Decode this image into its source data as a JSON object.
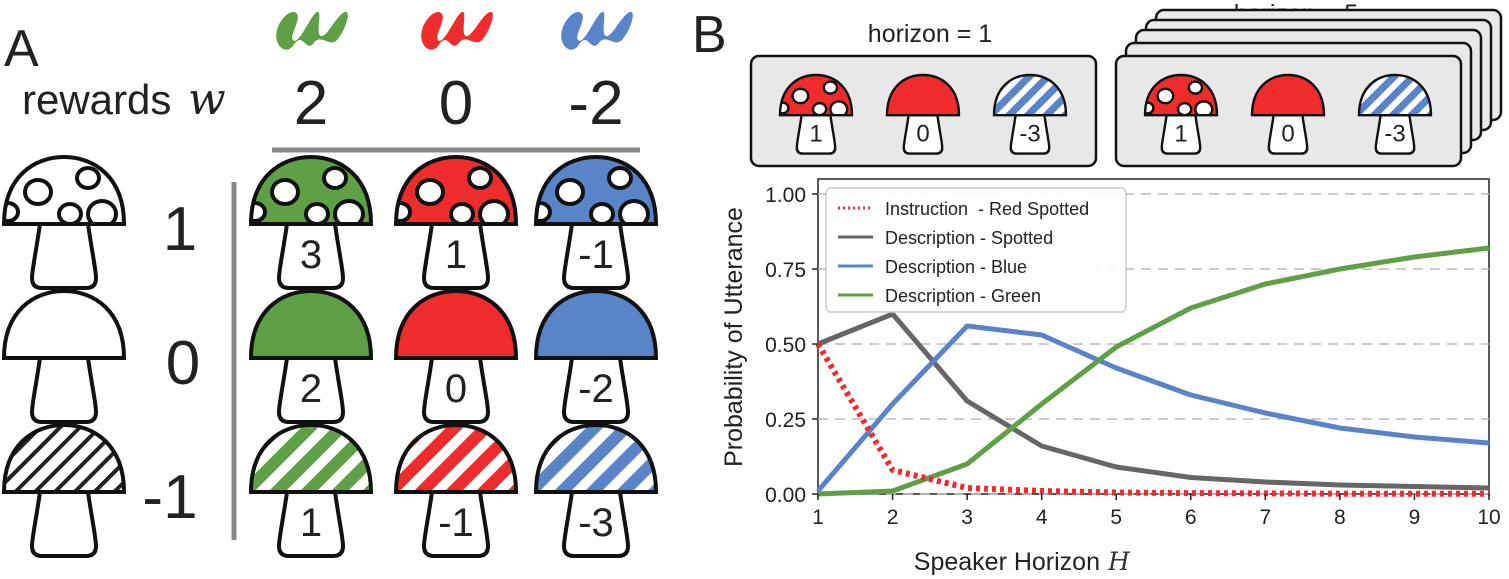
{
  "panel_a": {
    "letter": "A",
    "rewards_label": "rewards",
    "rewards_symbol": "w",
    "colors": [
      {
        "name": "green",
        "hex": "#5fa046",
        "reward": "2"
      },
      {
        "name": "red",
        "hex": "#ee2c2c",
        "reward": "0"
      },
      {
        "name": "blue",
        "hex": "#5a84c8",
        "reward": "-2"
      }
    ],
    "rows": [
      {
        "pattern": "spotted",
        "value": "1",
        "cells": [
          "3",
          "1",
          "-1"
        ]
      },
      {
        "pattern": "plain",
        "value": "0",
        "cells": [
          "2",
          "0",
          "-2"
        ]
      },
      {
        "pattern": "striped",
        "value": "-1",
        "cells": [
          "1",
          "-1",
          "-3"
        ]
      }
    ]
  },
  "panel_b": {
    "letter": "B",
    "box1": {
      "title": "horizon = 1",
      "stems": [
        "1",
        "0",
        "-3"
      ]
    },
    "box2": {
      "title": "horizon = 5",
      "stems": [
        "1",
        "0",
        "-3"
      ]
    }
  },
  "chart_data": {
    "type": "line",
    "xlabel": "Speaker Horizon",
    "xlabel_symbol": "H",
    "ylabel": "Probability of Utterance",
    "xlim": [
      1,
      10
    ],
    "ylim": [
      0,
      1.05
    ],
    "xticks": [
      "1",
      "2",
      "3",
      "4",
      "5",
      "6",
      "7",
      "8",
      "9",
      "10"
    ],
    "yticks": [
      "0.00",
      "0.25",
      "0.50",
      "0.75",
      "1.00"
    ],
    "grid": "horizontal dashed",
    "legend_position": "top-left",
    "x": [
      1,
      2,
      3,
      4,
      5,
      6,
      7,
      8,
      9,
      10
    ],
    "series": [
      {
        "name": "Instruction  - Red Spotted",
        "color": "#ee2c2c",
        "style": "dotted",
        "values": [
          0.5,
          0.08,
          0.02,
          0.01,
          0.005,
          0.003,
          0.002,
          0.001,
          0.001,
          0.001
        ]
      },
      {
        "name": "Description - Spotted",
        "color": "#666666",
        "style": "solid",
        "values": [
          0.5,
          0.6,
          0.31,
          0.16,
          0.09,
          0.055,
          0.04,
          0.03,
          0.025,
          0.02
        ]
      },
      {
        "name": "Description - Blue",
        "color": "#5a84c8",
        "style": "solid",
        "values": [
          0.01,
          0.3,
          0.56,
          0.53,
          0.42,
          0.33,
          0.27,
          0.22,
          0.19,
          0.17
        ]
      },
      {
        "name": "Description - Green",
        "color": "#5fa046",
        "style": "solid",
        "values": [
          0.0,
          0.01,
          0.1,
          0.3,
          0.49,
          0.62,
          0.7,
          0.75,
          0.79,
          0.82
        ]
      }
    ]
  }
}
